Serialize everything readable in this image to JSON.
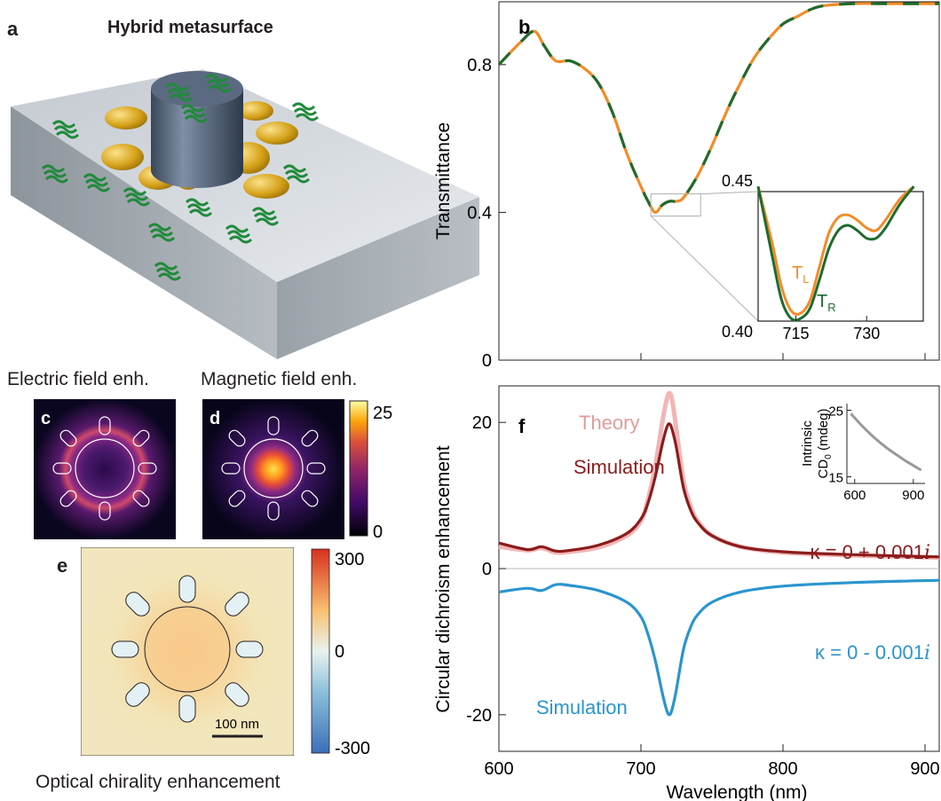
{
  "panels": {
    "a": {
      "letter": "a",
      "title": "Hybrid metasurface"
    },
    "b": {
      "letter": "b"
    },
    "c": {
      "letter": "c",
      "caption": "Electric field enh."
    },
    "d": {
      "letter": "d",
      "caption": "Magnetic field enh."
    },
    "e": {
      "letter": "e",
      "caption": "Optical chirality  enhancement",
      "scalebar_label": "100 nm"
    },
    "f": {
      "letter": "f"
    }
  },
  "colorbar_d": {
    "max_label": "25",
    "min_label": "0"
  },
  "colorbar_e": {
    "max_label": "300",
    "mid_label": "0",
    "min_label": "-300"
  },
  "colors": {
    "orange": "#f28c28",
    "dark_green": "#1e6b2e",
    "dark_red": "#8c1c1c",
    "pink": "#f2b5b5",
    "blue": "#2b95cf",
    "gold": "#d4a017",
    "slate": "#4a5a6e"
  },
  "chart_data": [
    {
      "type": "line",
      "panel": "b",
      "ylabel": "Transmittance",
      "xlabel": "",
      "xlim": [
        600,
        910
      ],
      "ylim": [
        0,
        0.97
      ],
      "yticks": [
        "0",
        "0.4",
        "0.8"
      ],
      "series": [
        {
          "name": "T_L",
          "color": "#f28c28",
          "x": [
            600,
            615,
            625,
            632,
            640,
            650,
            660,
            670,
            680,
            690,
            700,
            705,
            710,
            715,
            720,
            725,
            730,
            740,
            750,
            760,
            770,
            780,
            790,
            800,
            810,
            820,
            830,
            850,
            870,
            890,
            910
          ],
          "y": [
            0.8,
            0.86,
            0.89,
            0.85,
            0.81,
            0.81,
            0.79,
            0.75,
            0.67,
            0.56,
            0.47,
            0.43,
            0.4,
            0.42,
            0.43,
            0.43,
            0.44,
            0.5,
            0.58,
            0.67,
            0.75,
            0.82,
            0.87,
            0.91,
            0.93,
            0.95,
            0.96,
            0.965,
            0.965,
            0.965,
            0.965
          ]
        },
        {
          "name": "T_R",
          "color": "#1e6b2e",
          "x": [
            600,
            615,
            625,
            632,
            640,
            650,
            660,
            670,
            680,
            690,
            700,
            705,
            710,
            715,
            720,
            725,
            730,
            740,
            750,
            760,
            770,
            780,
            790,
            800,
            810,
            820,
            830,
            850,
            870,
            890,
            910
          ],
          "y": [
            0.8,
            0.86,
            0.89,
            0.85,
            0.81,
            0.81,
            0.79,
            0.75,
            0.67,
            0.56,
            0.47,
            0.43,
            0.4,
            0.42,
            0.43,
            0.43,
            0.44,
            0.5,
            0.58,
            0.67,
            0.75,
            0.82,
            0.87,
            0.91,
            0.93,
            0.95,
            0.96,
            0.965,
            0.965,
            0.965,
            0.965
          ]
        }
      ],
      "inset": {
        "xticks": [
          "715",
          "730"
        ],
        "ylabels": {
          "top": "0.45",
          "bottom": "0.40"
        },
        "xlim": [
          707,
          742
        ],
        "ylim": [
          0.4,
          0.45
        ],
        "labels": [
          {
            "text": "T",
            "sub": "L",
            "color": "#f28c28"
          },
          {
            "text": "T",
            "sub": "R",
            "color": "#1e6b2e"
          }
        ],
        "series": [
          {
            "name": "T_L",
            "color": "#f28c28",
            "x": [
              707,
              710,
              712,
              714,
              716,
              718,
              720,
              722,
              724,
              726,
              728,
              730,
              732,
              734,
              737,
              740
            ],
            "y": [
              0.452,
              0.43,
              0.413,
              0.404,
              0.403,
              0.408,
              0.421,
              0.434,
              0.44,
              0.441,
              0.439,
              0.436,
              0.435,
              0.439,
              0.447,
              0.452
            ]
          },
          {
            "name": "T_R",
            "color": "#1e6b2e",
            "x": [
              707,
              710,
              712,
              714,
              716,
              718,
              720,
              722,
              724,
              726,
              728,
              730,
              732,
              734,
              737,
              740
            ],
            "y": [
              0.452,
              0.425,
              0.408,
              0.401,
              0.401,
              0.405,
              0.416,
              0.428,
              0.435,
              0.437,
              0.435,
              0.432,
              0.432,
              0.436,
              0.445,
              0.452
            ]
          }
        ]
      }
    },
    {
      "type": "line",
      "panel": "f",
      "xlabel": "Wavelength (nm)",
      "ylabel": "Circular dichroism enhancement",
      "xlim": [
        600,
        910
      ],
      "ylim": [
        -25,
        25
      ],
      "xticks": [
        "600",
        "700",
        "800",
        "900"
      ],
      "yticks": [
        "-20",
        "0",
        "20"
      ],
      "series": [
        {
          "name": "Theory",
          "color": "#f2b5b5",
          "x": [
            600,
            620,
            630,
            640,
            650,
            670,
            690,
            700,
            705,
            710,
            715,
            718,
            720,
            722,
            725,
            730,
            735,
            740,
            750,
            770,
            800,
            850,
            910
          ],
          "y": [
            3.0,
            2.5,
            2.8,
            2.2,
            2.3,
            2.9,
            4.5,
            6.5,
            9.5,
            14.0,
            20.0,
            23.0,
            24.0,
            23.0,
            19.0,
            12.0,
            8.5,
            6.5,
            4.5,
            3.0,
            2.2,
            1.8,
            1.5
          ]
        },
        {
          "name": "Simulation",
          "color": "#8c1c1c",
          "x": [
            600,
            620,
            630,
            640,
            650,
            670,
            690,
            700,
            705,
            710,
            715,
            718,
            720,
            722,
            725,
            730,
            735,
            740,
            750,
            770,
            800,
            850,
            910
          ],
          "y": [
            3.5,
            2.6,
            3.0,
            2.4,
            2.5,
            3.2,
            4.8,
            6.8,
            9.0,
            12.5,
            17.0,
            19.2,
            19.8,
            19.0,
            16.5,
            11.0,
            8.0,
            6.3,
            4.5,
            3.0,
            2.3,
            1.9,
            1.6
          ]
        },
        {
          "name": "Simulation",
          "color": "#2b95cf",
          "x": [
            600,
            620,
            630,
            640,
            650,
            670,
            690,
            700,
            705,
            710,
            715,
            718,
            720,
            722,
            725,
            730,
            735,
            740,
            750,
            770,
            800,
            850,
            910
          ],
          "y": [
            -3.2,
            -2.7,
            -3.0,
            -2.2,
            -2.3,
            -3.0,
            -4.6,
            -6.6,
            -9.0,
            -12.5,
            -17.0,
            -19.3,
            -20.0,
            -19.2,
            -16.5,
            -11.0,
            -8.0,
            -6.3,
            -4.6,
            -3.2,
            -2.4,
            -1.9,
            -1.6
          ]
        }
      ],
      "labels": [
        {
          "text": "Theory",
          "color": "#e39a9a"
        },
        {
          "text": "Simulation",
          "color": "#8c1c1c"
        },
        {
          "text": "κ = 0 + 0.001",
          "italic_suffix": "i",
          "color": "#8c1c1c"
        },
        {
          "text": "κ = 0 - 0.001",
          "italic_suffix": "i",
          "color": "#2b95cf"
        },
        {
          "text": "Simulation",
          "color": "#2b95cf"
        }
      ],
      "inset": {
        "ylabel_line1": "Intrinsic",
        "ylabel_line2": "CD",
        "ylabel_sub": "0",
        "ylabel_unit": " (mdeg)",
        "xticks": [
          "600",
          "900"
        ],
        "yticks": [
          "15",
          "25"
        ],
        "xlim": [
          560,
          960
        ],
        "ylim": [
          14,
          26
        ],
        "series": [
          {
            "name": "",
            "color": "#999999",
            "x": [
              580,
              620,
              660,
              700,
              740,
              780,
              820,
              860,
              900,
              940
            ],
            "y": [
              24.5,
              23.2,
              22.0,
              20.9,
              19.9,
              19.0,
              18.2,
              17.4,
              16.7,
              16.0
            ]
          }
        ]
      }
    }
  ]
}
